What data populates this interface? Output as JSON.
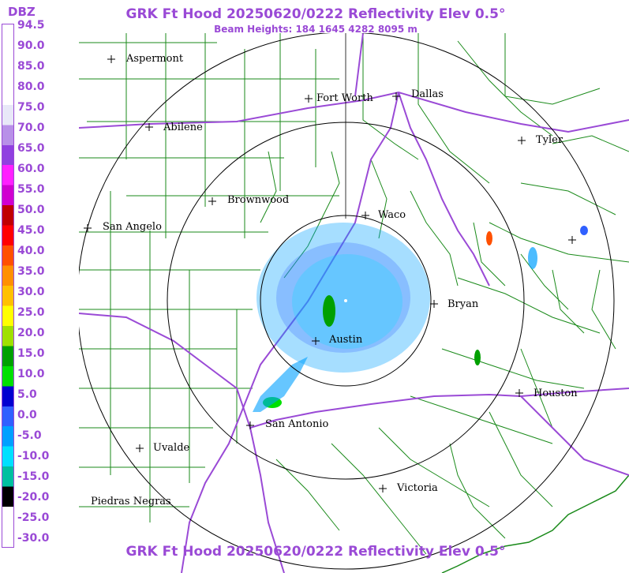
{
  "header": {
    "title": "GRK Ft Hood 20250620/0222 Reflectivity Elev 0.5°",
    "beam_heights": "Beam Heights: 184 1645 4282 8095 m",
    "footer_title": "GRK Ft Hood 20250620/0222 Reflectivity Elev 0.5°"
  },
  "legend": {
    "unit": "DBZ",
    "levels": [
      "94.5",
      "90.0",
      "85.0",
      "80.0",
      "75.0",
      "70.0",
      "65.0",
      "60.0",
      "55.0",
      "50.0",
      "45.0",
      "40.0",
      "35.0",
      "30.0",
      "25.0",
      "20.0",
      "15.0",
      "10.0",
      "5.0",
      "0.0",
      "-5.0",
      "-10.0",
      "-15.0",
      "-20.0",
      "-25.0",
      "-30.0"
    ],
    "colors": [
      "#ffffff",
      "#ffffff",
      "#ffffff",
      "#ffffff",
      "#e8e8f8",
      "#b890e8",
      "#9040e0",
      "#ff20ff",
      "#d000d0",
      "#c00000",
      "#ff0000",
      "#ff5000",
      "#ff9000",
      "#ffc000",
      "#ffff00",
      "#a0e000",
      "#00a000",
      "#00e000",
      "#0000d0",
      "#3060ff",
      "#00a0ff",
      "#00e0ff",
      "#00c0a0",
      "#000000",
      "#ffffff",
      "#ffffff"
    ]
  },
  "cities": [
    {
      "name": "Aspermont",
      "id": "aspermont"
    },
    {
      "name": "Fort Worth",
      "id": "fort-worth"
    },
    {
      "name": "Dallas",
      "id": "dallas"
    },
    {
      "name": "Abilene",
      "id": "abilene"
    },
    {
      "name": "Tyler",
      "id": "tyler"
    },
    {
      "name": "Brownwood",
      "id": "brownwood"
    },
    {
      "name": "Waco",
      "id": "waco"
    },
    {
      "name": "San Angelo",
      "id": "san-angelo"
    },
    {
      "name": "Bryan",
      "id": "bryan"
    },
    {
      "name": "Austin",
      "id": "austin"
    },
    {
      "name": "Houston",
      "id": "houston"
    },
    {
      "name": "San Antonio",
      "id": "san-antonio"
    },
    {
      "name": "Uvalde",
      "id": "uvalde"
    },
    {
      "name": "Victoria",
      "id": "victoria"
    },
    {
      "name": "Piedras Negras",
      "id": "piedras-negras"
    }
  ],
  "colors": {
    "title": "#9a4ad6",
    "roads": "#9a4ad6",
    "counties": "#1a8a1a",
    "rings": "#000000"
  }
}
